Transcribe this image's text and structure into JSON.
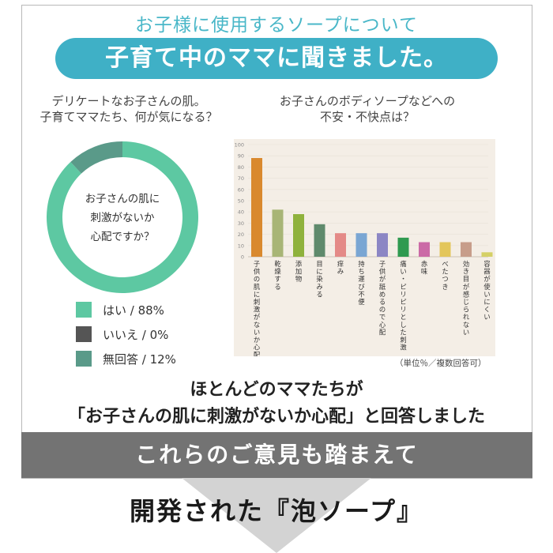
{
  "header": {
    "top_line": "お子様に使用するソープについて",
    "pill_text": "子育て中のママに聞きました。"
  },
  "left_panel": {
    "question_line1": "デリケートなお子さんの肌。",
    "question_line2": "子育てママたち、何が気になる？",
    "donut_text_line1": "お子さんの肌に",
    "donut_text_line2": "刺激がないか",
    "donut_text_line3": "心配ですか？",
    "legend": [
      {
        "label": "はい / 88%",
        "color": "#5dc8a2"
      },
      {
        "label": "いいえ / 0%",
        "color": "#555555"
      },
      {
        "label": "無回答 / 12%",
        "color": "#5a9a89"
      }
    ]
  },
  "right_panel": {
    "question_line1": "お子さんのボディソープなどへの",
    "question_line2": "不安・不快点は？",
    "unit_note": "（単位％／複数回答可）"
  },
  "chart_data": [
    {
      "type": "pie",
      "labels": [
        "はい",
        "いいえ",
        "無回答"
      ],
      "values": [
        88,
        0,
        12
      ],
      "colors": [
        "#5dc8a2",
        "#555555",
        "#5a9a89"
      ]
    },
    {
      "type": "bar",
      "categories": [
        "子供の肌に刺激がないか心配",
        "乾燥する",
        "添加物",
        "目に染みる",
        "痒み",
        "持ち運び不便",
        "子供が舐めるので心配",
        "痛い・ピリピリとした刺激",
        "赤味",
        "べたつき",
        "効き目が感じられない",
        "容器が使いにくい"
      ],
      "values": [
        88,
        42,
        38,
        29,
        21,
        21,
        21,
        17,
        13,
        13,
        13,
        4
      ],
      "colors": [
        "#d9892e",
        "#a8b576",
        "#8fb23c",
        "#5f8a6c",
        "#e48a87",
        "#7aa6d3",
        "#8c86c4",
        "#2f9a50",
        "#cb6aa6",
        "#e3c65a",
        "#c79d8a",
        "#d5d066"
      ],
      "yticks": [
        0,
        10,
        20,
        30,
        40,
        50,
        60,
        70,
        80,
        90,
        100
      ],
      "ylim": [
        0,
        100
      ]
    }
  ],
  "conclusion": {
    "line1": "ほとんどのママたちが",
    "line2": "「お子さんの肌に刺激がないか心配」と回答しました"
  },
  "banner_text": "これらのご意見も踏まえて",
  "bottom_text": "開発された『泡ソープ』"
}
